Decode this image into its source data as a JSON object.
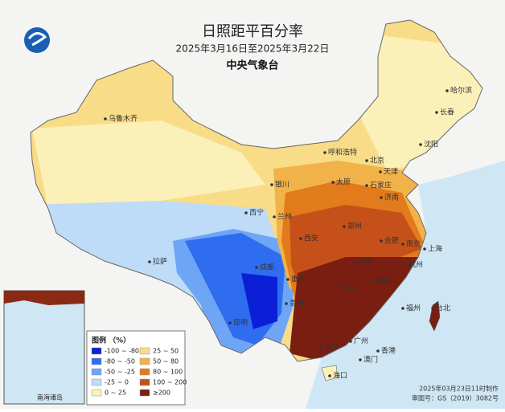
{
  "header": {
    "title": "日照距平百分率",
    "subtitle": "2025年3月16日至2025年3月22日",
    "agency": "中央气象台"
  },
  "legend": {
    "title": "图例 （%）",
    "items": [
      {
        "label": "-100 ~ -80",
        "color": "#0a1fd6"
      },
      {
        "label": "-80 ~ -50",
        "color": "#2f6df0"
      },
      {
        "label": "-50 ~ -25",
        "color": "#6ea6f5"
      },
      {
        "label": "-25 ~ 0",
        "color": "#bedcf8"
      },
      {
        "label": "0 ~ 25",
        "color": "#fbf1b8"
      },
      {
        "label": "25 ~ 50",
        "color": "#f8dc88"
      },
      {
        "label": "50 ~ 80",
        "color": "#f2b24a"
      },
      {
        "label": "80 ~ 100",
        "color": "#e27b1b"
      },
      {
        "label": "100 ~ 200",
        "color": "#c6501a"
      },
      {
        "label": "≥200",
        "color": "#7a1e12"
      }
    ]
  },
  "cities": [
    "乌鲁木齐",
    "哈尔滨",
    "长春",
    "沈阳",
    "呼和浩特",
    "北京",
    "天津",
    "石家庄",
    "太原",
    "济南",
    "银川",
    "西宁",
    "兰州",
    "郑州",
    "西安",
    "合肥",
    "南京",
    "上海",
    "成都",
    "重庆",
    "武汉",
    "拉萨",
    "昆明",
    "贵阳",
    "长沙",
    "南昌",
    "杭州",
    "福州",
    "广州",
    "南宁",
    "香港",
    "澳门",
    "海口",
    "台北"
  ],
  "inset": {
    "label": "南海诸岛"
  },
  "footer": {
    "made": "2025年03月23日11时制作",
    "approval": "审图号：GS（2019）3082号"
  }
}
